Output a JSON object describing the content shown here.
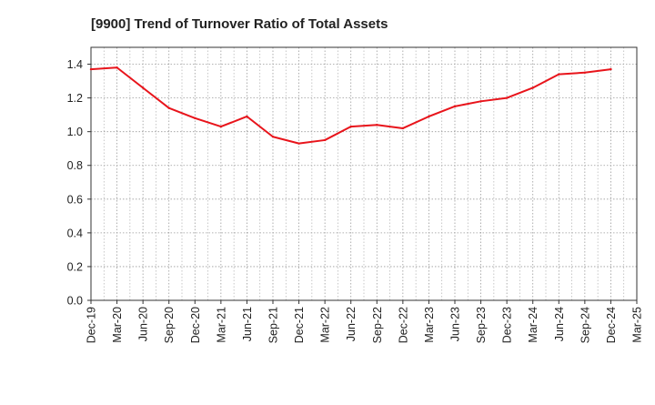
{
  "chart_data": {
    "type": "line",
    "title": "[9900]  Trend of Turnover Ratio of Total Assets",
    "xlabel": "",
    "ylabel": "",
    "x_ticks": [
      "Dec-19",
      "Mar-20",
      "Jun-20",
      "Sep-20",
      "Dec-20",
      "Mar-21",
      "Jun-21",
      "Sep-21",
      "Dec-21",
      "Mar-22",
      "Jun-22",
      "Sep-22",
      "Dec-22",
      "Mar-23",
      "Jun-23",
      "Sep-23",
      "Dec-23",
      "Mar-24",
      "Jun-24",
      "Sep-24",
      "Dec-24",
      "Mar-25"
    ],
    "y_ticks": [
      "0.0",
      "0.2",
      "0.4",
      "0.6",
      "0.8",
      "1.0",
      "1.2",
      "1.4"
    ],
    "ylim": [
      0,
      1.5
    ],
    "grid": true,
    "series": [
      {
        "name": "",
        "color": "#e8141b",
        "x": [
          "Dec-19",
          "Mar-20",
          "Jun-20",
          "Sep-20",
          "Dec-20",
          "Mar-21",
          "Jun-21",
          "Sep-21",
          "Dec-21",
          "Mar-22",
          "Jun-22",
          "Sep-22",
          "Dec-22",
          "Mar-23",
          "Jun-23",
          "Sep-23",
          "Dec-23",
          "Mar-24",
          "Jun-24",
          "Sep-24",
          "Dec-24"
        ],
        "values": [
          1.37,
          1.38,
          1.26,
          1.14,
          1.08,
          1.03,
          1.09,
          0.97,
          0.93,
          0.95,
          1.03,
          1.04,
          1.02,
          1.09,
          1.15,
          1.18,
          1.2,
          1.26,
          1.34,
          1.35,
          1.37
        ]
      }
    ]
  }
}
